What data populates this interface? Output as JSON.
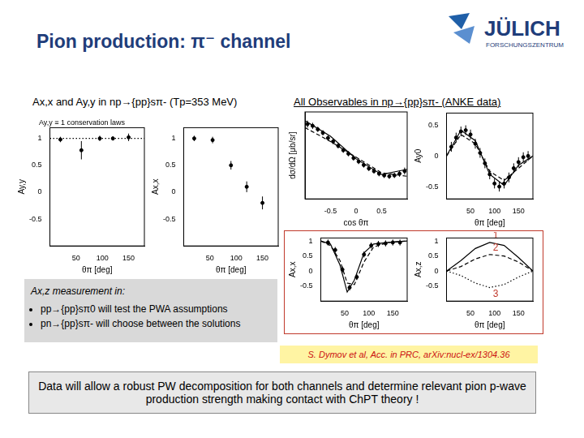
{
  "header": {
    "title": "Pion production: π⁻ channel",
    "logo": {
      "name": "JÜLICH",
      "subname": "FORSCHUNGSZENTRUM"
    },
    "subtitle_left": "Ax,x and Ay,y in np→{pp}sπ- (Tp=353 MeV)",
    "subtitle_right": "All Observables in np→{pp}sπ- (ANKE data)"
  },
  "chart_data": [
    {
      "type": "scatter",
      "annotation": "Ay,y ≡ 1 conservation laws",
      "x_label": "θπ [deg]",
      "y_label": "Ay,y",
      "xlim": [
        0,
        180
      ],
      "xticks": [
        50,
        100,
        150
      ],
      "ylim": [
        -1,
        1.2
      ],
      "yticks": [
        -0.5,
        0,
        0.5,
        1
      ],
      "grid": false,
      "series": [
        {
          "type": "scatter",
          "color": "#000000",
          "x": [
            20,
            60,
            95,
            120,
            150
          ],
          "values": [
            0.98,
            0.78,
            1.0,
            1.0,
            1.02
          ],
          "errors": [
            0.05,
            0.17,
            0.05,
            0.04,
            0.07
          ]
        },
        {
          "type": "line",
          "color": "#000000",
          "line_style": "dotted",
          "x": [
            0,
            180
          ],
          "values": [
            1,
            1
          ]
        }
      ]
    },
    {
      "type": "scatter",
      "x_label": "θπ [deg]",
      "y_label": "Ax,x",
      "xlim": [
        0,
        180
      ],
      "xticks": [
        50,
        100,
        150
      ],
      "ylim": [
        -1,
        1.2
      ],
      "yticks": [
        -0.5,
        0,
        0.5,
        1
      ],
      "grid": false,
      "series": [
        {
          "type": "scatter",
          "color": "#000000",
          "x": [
            20,
            55,
            90,
            120,
            150
          ],
          "values": [
            1.0,
            0.97,
            0.5,
            0.1,
            -0.2
          ],
          "errors": [
            0.05,
            0.06,
            0.08,
            0.1,
            0.12
          ]
        }
      ]
    },
    {
      "type": "scatter",
      "x_label": "cos θπ",
      "y_label": "dσ/dΩ [μb/sr]",
      "tick_labels": "x",
      "xlim": [
        -1,
        1
      ],
      "xticks": [
        -0.5,
        0,
        0.5
      ],
      "ylim": [
        0,
        10
      ],
      "grid": false,
      "series": [
        {
          "type": "scatter",
          "color": "#000000",
          "x": [
            -0.95,
            -0.85,
            -0.75,
            -0.65,
            -0.55,
            -0.45,
            -0.35,
            -0.25,
            -0.15,
            -0.05,
            0.05,
            0.15,
            0.25,
            0.35,
            0.45,
            0.55,
            0.65,
            0.75,
            0.85,
            0.95
          ],
          "values": [
            8.6,
            8.4,
            8.0,
            7.6,
            7.0,
            6.6,
            6.1,
            5.6,
            5.2,
            4.7,
            4.3,
            3.9,
            3.5,
            3.2,
            2.9,
            2.7,
            2.6,
            2.7,
            2.9,
            3.2
          ],
          "errors": [
            0.4,
            0.35,
            0.3,
            0.3,
            0.3,
            0.3,
            0.3,
            0.3,
            0.3,
            0.3,
            0.3,
            0.3,
            0.3,
            0.3,
            0.3,
            0.3,
            0.3,
            0.3,
            0.35,
            0.4
          ]
        },
        {
          "type": "line",
          "color": "#000000",
          "line_style": "solid",
          "x": [
            -1,
            -0.5,
            0,
            0.5,
            1
          ],
          "values": [
            9.0,
            7.2,
            4.6,
            2.8,
            3.4
          ]
        },
        {
          "type": "line",
          "color": "#000000",
          "line_style": "dashed",
          "x": [
            -1,
            -0.5,
            0,
            0.5,
            1
          ],
          "values": [
            8.2,
            6.6,
            4.8,
            3.0,
            2.6
          ]
        }
      ]
    },
    {
      "type": "scatter",
      "x_label": "θπ [deg]",
      "y_label": "Ay0",
      "xlim": [
        0,
        180
      ],
      "xticks": [
        50,
        100,
        150
      ],
      "ylim": [
        -0.7,
        0.7
      ],
      "yticks": [
        -0.5,
        0,
        0.5
      ],
      "grid": false,
      "series": [
        {
          "type": "scatter",
          "color": "#000000",
          "x": [
            10,
            20,
            30,
            40,
            50,
            60,
            70,
            80,
            90,
            100,
            110,
            120,
            130,
            140,
            150,
            160,
            170
          ],
          "values": [
            0.15,
            0.3,
            0.4,
            0.42,
            0.35,
            0.2,
            0.05,
            -0.12,
            -0.3,
            -0.45,
            -0.5,
            -0.45,
            -0.35,
            -0.2,
            -0.1,
            -0.02,
            0.0
          ],
          "errors": [
            0.08,
            0.08,
            0.08,
            0.08,
            0.08,
            0.08,
            0.08,
            0.08,
            0.08,
            0.08,
            0.08,
            0.08,
            0.08,
            0.08,
            0.08,
            0.08,
            0.08
          ]
        },
        {
          "type": "line",
          "color": "#000000",
          "line_style": "solid",
          "x": [
            0,
            30,
            60,
            90,
            120,
            150,
            180
          ],
          "values": [
            0,
            0.42,
            0.25,
            -0.3,
            -0.48,
            -0.15,
            0
          ]
        },
        {
          "type": "line",
          "color": "#000000",
          "line_style": "dashed",
          "x": [
            0,
            30,
            60,
            90,
            120,
            150,
            180
          ],
          "values": [
            0,
            0.35,
            0.2,
            -0.25,
            -0.4,
            -0.2,
            0
          ]
        }
      ]
    },
    {
      "type": "scatter",
      "x_label": "θπ [deg]",
      "y_label": "Ax,x",
      "xlim": [
        0,
        180
      ],
      "xticks": [
        50,
        100,
        150
      ],
      "ylim": [
        -1,
        1.1
      ],
      "yticks": [
        -0.5,
        0,
        0.5,
        1
      ],
      "grid": false,
      "series": [
        {
          "type": "scatter",
          "color": "#000000",
          "x": [
            15,
            30,
            45,
            60,
            75,
            90,
            105,
            120,
            135,
            150,
            165
          ],
          "values": [
            0.95,
            0.7,
            0.05,
            -0.55,
            -0.2,
            0.55,
            0.85,
            0.9,
            0.92,
            0.95,
            0.95
          ],
          "errors": [
            0.1,
            0.1,
            0.1,
            0.1,
            0.1,
            0.1,
            0.1,
            0.1,
            0.1,
            0.1,
            0.1
          ]
        },
        {
          "type": "line",
          "color": "#000000",
          "line_style": "solid",
          "x": [
            0,
            20,
            40,
            55,
            70,
            90,
            110,
            140,
            180
          ],
          "values": [
            1,
            0.9,
            0.2,
            -0.7,
            -0.3,
            0.6,
            0.9,
            0.95,
            1
          ]
        },
        {
          "type": "line",
          "color": "#000000",
          "line_style": "dashed",
          "x": [
            0,
            20,
            40,
            55,
            70,
            90,
            110,
            140,
            180
          ],
          "values": [
            1,
            0.85,
            0.35,
            -0.4,
            -0.45,
            0.3,
            0.8,
            0.95,
            1
          ]
        }
      ]
    },
    {
      "type": "line",
      "x_label": "θπ [deg]",
      "y_label": "Ax,z",
      "xlim": [
        0,
        180
      ],
      "xticks": [
        50,
        100,
        150
      ],
      "ylim": [
        -1,
        1.1
      ],
      "yticks": [
        -0.5,
        0,
        0.5,
        1
      ],
      "grid": false,
      "series": [
        {
          "type": "line",
          "label": "1",
          "color": "#000000",
          "line_style": "solid",
          "x": [
            0,
            30,
            60,
            90,
            120,
            150,
            180
          ],
          "values": [
            0,
            0.35,
            0.75,
            0.95,
            0.85,
            0.45,
            0
          ]
        },
        {
          "type": "line",
          "label": "2",
          "color": "#000000",
          "line_style": "dashed",
          "x": [
            0,
            30,
            60,
            90,
            120,
            150,
            180
          ],
          "values": [
            0,
            0.15,
            0.4,
            0.55,
            0.5,
            0.3,
            0
          ]
        },
        {
          "type": "line",
          "label": "3",
          "color": "#000000",
          "line_style": "dotted",
          "x": [
            0,
            30,
            60,
            90,
            120,
            150,
            180
          ],
          "values": [
            0,
            -0.15,
            -0.4,
            -0.55,
            -0.45,
            -0.2,
            0
          ]
        }
      ]
    }
  ],
  "axz_box": {
    "heading": "Ax,z measurement in:",
    "bullets": [
      "pp→{pp}sπ0  will test the PWA assumptions",
      "pn→{pp}sπ-  will choose between the solutions"
    ]
  },
  "citation": "S. Dymov et al, Acc. in PRC, arXiv:nucl-ex/1304.36",
  "conclusion": "Data will allow a robust PW decomposition for both channels  and determine relevant pion p-wave production strength making contact with  ChPT theory !"
}
